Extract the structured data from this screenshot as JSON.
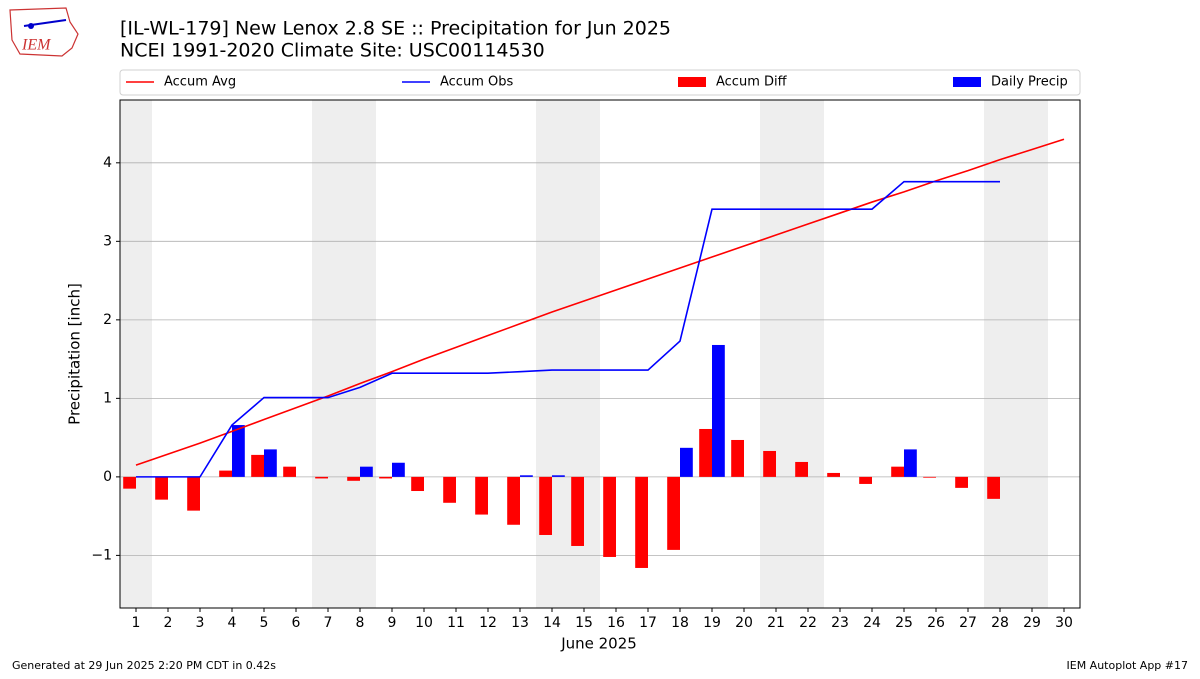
{
  "logo": {
    "text": "IEM"
  },
  "footer": {
    "left": "Generated at 29 Jun 2025 2:20 PM CDT in 0.42s",
    "right": "IEM Autoplot App #17"
  },
  "chart_data": {
    "type": "bar",
    "title": "[IL-WL-179] New Lenox 2.8 SE :: Precipitation for Jun 2025",
    "subtitle": "NCEI 1991-2020 Climate Site: USC00114530",
    "x_label": "June 2025",
    "y_label": "Precipitation [inch]",
    "x": [
      1,
      2,
      3,
      4,
      5,
      6,
      7,
      8,
      9,
      10,
      11,
      12,
      13,
      14,
      15,
      16,
      17,
      18,
      19,
      20,
      21,
      22,
      23,
      24,
      25,
      26,
      27,
      28,
      29,
      30
    ],
    "xlim": [
      0.5,
      30.5
    ],
    "xticks": [
      1,
      2,
      3,
      4,
      5,
      6,
      7,
      8,
      9,
      10,
      11,
      12,
      13,
      14,
      15,
      16,
      17,
      18,
      19,
      20,
      21,
      22,
      23,
      24,
      25,
      26,
      27,
      28,
      29,
      30
    ],
    "ylim": [
      -1.67,
      4.8
    ],
    "yticks": [
      {
        "value": -1,
        "label": "−1"
      },
      0,
      1,
      2,
      3,
      4
    ],
    "grid": true,
    "legend": "top",
    "shaded_days": [
      1,
      7,
      8,
      14,
      15,
      21,
      22,
      28,
      29
    ],
    "shade_color": "#eeeeee",
    "series": [
      {
        "name": "Accum Avg",
        "type": "line",
        "color": "#ff0000",
        "values": [
          0.15,
          0.29,
          0.43,
          0.58,
          0.73,
          0.88,
          1.03,
          1.19,
          1.34,
          1.5,
          1.65,
          1.8,
          1.95,
          2.1,
          2.24,
          2.38,
          2.52,
          2.66,
          2.8,
          2.94,
          3.08,
          3.22,
          3.36,
          3.5,
          3.63,
          3.77,
          3.9,
          4.04,
          4.17,
          4.3
        ]
      },
      {
        "name": "Accum Obs",
        "type": "line",
        "color": "#0000ff",
        "values": [
          0,
          0,
          0,
          0.66,
          1.01,
          1.01,
          1.01,
          1.14,
          1.32,
          1.32,
          1.32,
          1.32,
          1.34,
          1.36,
          1.36,
          1.36,
          1.36,
          1.73,
          3.41,
          3.41,
          3.41,
          3.41,
          3.41,
          3.41,
          3.76,
          3.76,
          3.76,
          3.76,
          null,
          null
        ]
      },
      {
        "name": "Accum Diff",
        "type": "bar",
        "color": "#ff0000",
        "values": [
          -0.15,
          -0.29,
          -0.43,
          0.08,
          0.28,
          0.13,
          -0.02,
          -0.05,
          -0.02,
          -0.18,
          -0.33,
          -0.48,
          -0.61,
          -0.74,
          -0.88,
          -1.02,
          -1.16,
          -0.93,
          0.61,
          0.47,
          0.33,
          0.19,
          0.05,
          -0.09,
          0.13,
          -0.01,
          -0.14,
          -0.28,
          null,
          null
        ]
      },
      {
        "name": "Daily Precip",
        "type": "bar",
        "color": "#0000ff",
        "values": [
          0,
          0,
          0,
          0.66,
          0.35,
          0,
          0,
          0.13,
          0.18,
          0,
          0,
          0,
          0.02,
          0.02,
          0,
          0,
          0,
          0.37,
          1.68,
          0,
          0,
          0,
          0,
          0,
          0.35,
          0,
          0,
          0,
          null,
          null
        ]
      }
    ]
  }
}
